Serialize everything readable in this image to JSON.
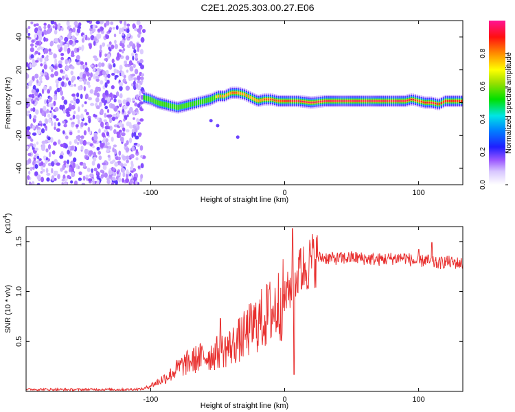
{
  "figure": {
    "title": "C2E1.2025.303.00.27.E06"
  },
  "chart_data": [
    {
      "type": "heatmap",
      "xlabel": "Height of straight line (km)",
      "ylabel": "Frequency (Hz)",
      "xlim": [
        -193,
        133
      ],
      "ylim": [
        -50,
        50
      ],
      "xticks": [
        -100,
        0,
        100
      ],
      "yticks": [
        -40,
        -20,
        0,
        20,
        40
      ],
      "grid": false,
      "colorbar": {
        "label": "Normalized spectral amplitude",
        "range": [
          0,
          1
        ],
        "ticks": [
          "0.0",
          "0.2",
          "0.4",
          "0.6",
          "0.8"
        ]
      },
      "noise_region": {
        "x_from": -193,
        "x_to": -105,
        "description": "scattered low-amplitude purple speckle"
      },
      "ridge": {
        "x": [
          -105,
          -100,
          -95,
          -90,
          -85,
          -80,
          -75,
          -70,
          -65,
          -60,
          -55,
          -50,
          -45,
          -40,
          -35,
          -30,
          -25,
          -20,
          -15,
          -10,
          -5,
          0,
          10,
          20,
          30,
          40,
          50,
          60,
          70,
          80,
          90,
          95,
          100,
          105,
          110,
          115,
          120,
          125,
          133
        ],
        "freq": [
          3,
          2,
          0,
          -1,
          -2,
          -3,
          -2,
          -1,
          0,
          1,
          2,
          4,
          4,
          6,
          6,
          5,
          3,
          1,
          2,
          2,
          1,
          1,
          1,
          0,
          1,
          1,
          1,
          1,
          1,
          1,
          1,
          2,
          1,
          0,
          0,
          -1,
          1,
          1,
          1
        ],
        "amplitude": [
          0.55,
          0.55,
          0.6,
          0.6,
          0.55,
          0.55,
          0.6,
          0.65,
          0.65,
          0.6,
          0.6,
          0.75,
          0.8,
          0.85,
          0.85,
          0.8,
          0.75,
          0.8,
          0.85,
          0.85,
          0.85,
          0.9,
          0.95,
          0.95,
          0.95,
          0.95,
          0.95,
          0.95,
          0.95,
          0.95,
          0.95,
          0.9,
          0.85,
          0.9,
          0.95,
          0.9,
          0.9,
          0.9,
          0.9
        ]
      },
      "stray_points": [
        {
          "x": -55,
          "freq": -11
        },
        {
          "x": -50,
          "freq": -14
        },
        {
          "x": -35,
          "freq": -21
        }
      ]
    },
    {
      "type": "line",
      "xlabel": "Height of straight line (km)",
      "ylabel": "SNR (10 * v/v)",
      "y_multiplier": "(x10",
      "y_multiplier_exp": "4",
      "y_multiplier_close": ")",
      "xlim": [
        -193,
        133
      ],
      "ylim": [
        0,
        16500
      ],
      "xticks": [
        -100,
        0,
        100
      ],
      "yticks": [
        {
          "value": 5000,
          "label": "0.5"
        },
        {
          "value": 10000,
          "label": "1.0"
        },
        {
          "value": 15000,
          "label": "1.5"
        }
      ],
      "grid": false,
      "color": "#e8302f",
      "series": [
        {
          "x": [
            -193,
            -180,
            -160,
            -140,
            -120,
            -105,
            -100,
            -95,
            -90,
            -85,
            -80,
            -75,
            -70,
            -65,
            -60,
            -55,
            -50,
            -45,
            -40,
            -35,
            -30,
            -25,
            -20,
            -15,
            -10,
            -5,
            0,
            5,
            7,
            10,
            15,
            20,
            25,
            30,
            35,
            40,
            50,
            60,
            70,
            80,
            90,
            95,
            100,
            105,
            110,
            115,
            120,
            125,
            133
          ],
          "y": [
            200,
            200,
            180,
            200,
            180,
            250,
            600,
            900,
            1300,
            1700,
            2300,
            2700,
            3000,
            3300,
            3500,
            3600,
            3900,
            4200,
            4500,
            5000,
            5600,
            6300,
            6900,
            7400,
            8000,
            8600,
            9400,
            10500,
            11000,
            11700,
            12400,
            13100,
            13400,
            13400,
            13300,
            13300,
            13400,
            13300,
            13200,
            13300,
            13400,
            13100,
            12900,
            13200,
            12900,
            12800,
            13000,
            12900,
            12800
          ]
        }
      ],
      "spikes": [
        {
          "x": -48,
          "y": 7300
        },
        {
          "x": -29,
          "y": 5700
        },
        {
          "x": 6,
          "y": 16300
        },
        {
          "x": 7,
          "y": 1700
        },
        {
          "x": 12,
          "y": 14300
        },
        {
          "x": 100,
          "y": 14200
        },
        {
          "x": 110,
          "y": 14900
        }
      ]
    }
  ]
}
